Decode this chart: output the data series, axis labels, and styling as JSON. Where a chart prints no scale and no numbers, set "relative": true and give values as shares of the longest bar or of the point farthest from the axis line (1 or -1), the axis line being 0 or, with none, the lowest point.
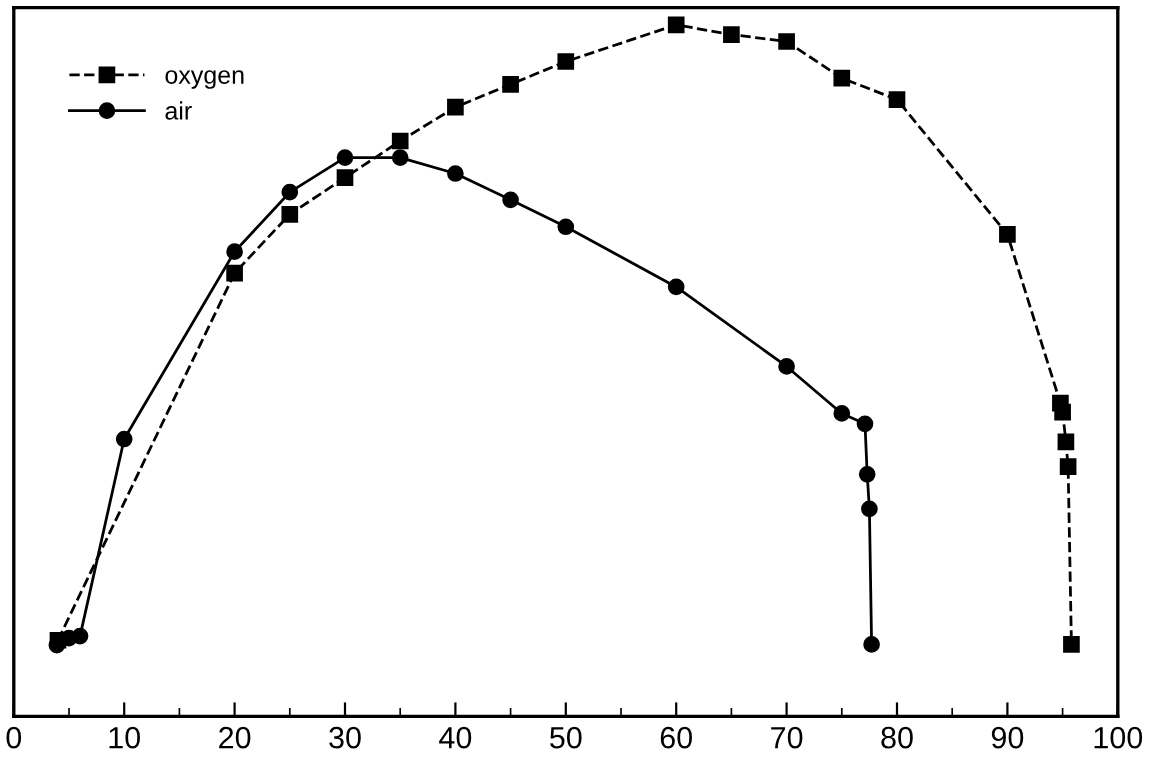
{
  "chart_data": {
    "type": "line",
    "relative": true,
    "legend": "top left",
    "grid": false,
    "xlim": [
      0,
      100
    ],
    "xticks": [
      0,
      {
        "value": 5,
        "label": null
      },
      10,
      {
        "value": 15,
        "label": null
      },
      20,
      {
        "value": 25,
        "label": null
      },
      30,
      {
        "value": 35,
        "label": null
      },
      40,
      {
        "value": 45,
        "label": null
      },
      50,
      {
        "value": 55,
        "label": null
      },
      60,
      {
        "value": 65,
        "label": null
      },
      70,
      {
        "value": 75,
        "label": null
      },
      80,
      {
        "value": 85,
        "label": null
      },
      90,
      {
        "value": 95,
        "label": null
      },
      100
    ],
    "series": [
      {
        "name": "oxygen",
        "color": "#000000",
        "marker": "square",
        "line_style": "dashed",
        "x": [
          4.0,
          20,
          25,
          30,
          35,
          40,
          45,
          50,
          60,
          65,
          70,
          75,
          80,
          90,
          94.8,
          95.0,
          95.3,
          95.5,
          95.8
        ],
        "values": [
          0.11,
          0.641,
          0.726,
          0.779,
          0.832,
          0.881,
          0.914,
          0.947,
          1.0,
          0.986,
          0.976,
          0.923,
          0.892,
          0.697,
          0.453,
          0.44,
          0.397,
          0.361,
          0.104
        ]
      },
      {
        "name": "air",
        "color": "#000000",
        "marker": "circle",
        "line_style": "solid",
        "x": [
          3.9,
          5.0,
          6.0,
          10,
          20,
          25,
          30,
          35,
          40,
          45,
          50,
          60,
          70,
          75,
          77.1,
          77.3,
          77.5,
          77.7
        ],
        "values": [
          0.103,
          0.113,
          0.116,
          0.401,
          0.672,
          0.758,
          0.808,
          0.808,
          0.785,
          0.747,
          0.708,
          0.621,
          0.506,
          0.438,
          0.423,
          0.35,
          0.3,
          0.104
        ]
      }
    ]
  }
}
